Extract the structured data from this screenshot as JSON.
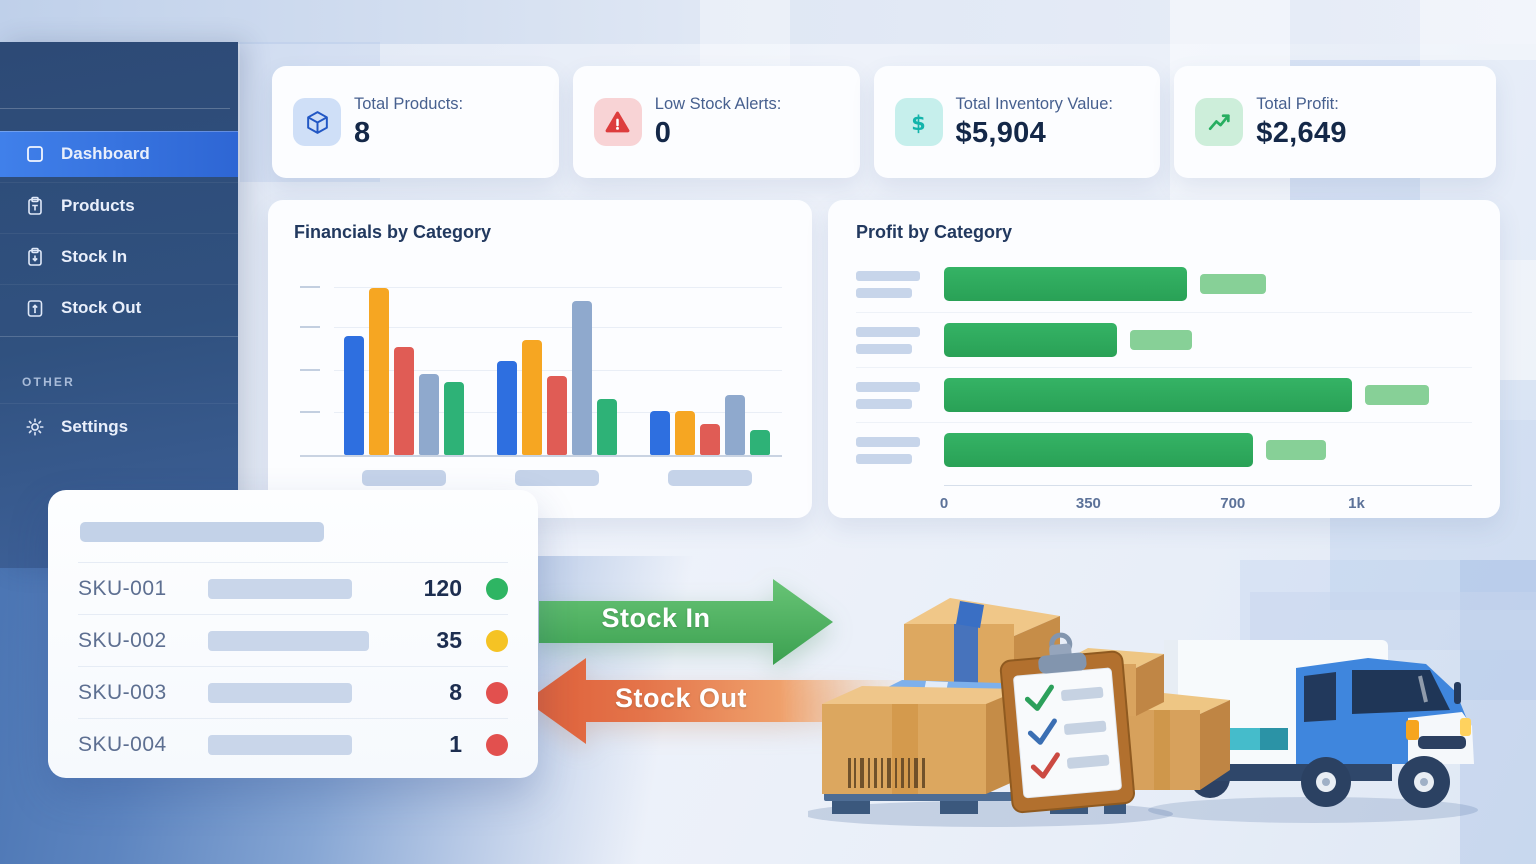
{
  "sidebar": {
    "items": [
      {
        "label": "Dashboard",
        "icon": "dashboard-icon",
        "active": true
      },
      {
        "label": "Products",
        "icon": "products-icon",
        "active": false
      },
      {
        "label": "Stock In",
        "icon": "stock-in-icon",
        "active": false
      },
      {
        "label": "Stock Out",
        "icon": "stock-out-icon",
        "active": false
      }
    ],
    "section_label": "OTHER",
    "settings_label": "Settings"
  },
  "kpi_cards": [
    {
      "label": "Total Products:",
      "value": "8",
      "icon": "cube-icon",
      "icon_color": "#2257c4",
      "icon_bg": "#cfdff7"
    },
    {
      "label": "Low Stock Alerts:",
      "value": "0",
      "icon": "alert-icon",
      "icon_color": "#dd3d3d",
      "icon_bg": "#f8d3d5"
    },
    {
      "label": "Total Inventory Value:",
      "value": "$5,904",
      "icon": "dollar-icon",
      "icon_color": "#13b4ab",
      "icon_bg": "#c6efec"
    },
    {
      "label": "Total Profit:",
      "value": "$2,649",
      "icon": "trend-up-icon",
      "icon_color": "#27ae60",
      "icon_bg": "#cdeeda"
    }
  ],
  "chart_data": [
    {
      "type": "bar",
      "title": "Financials by Category",
      "categories": [
        "",
        "",
        ""
      ],
      "x_labels_are_placeholders": true,
      "ylim": [
        0,
        100
      ],
      "grid": true,
      "legend": "none",
      "series": [
        {
          "name": "series-blue",
          "color": "#2e6fe0",
          "values": [
            62,
            49,
            23
          ]
        },
        {
          "name": "series-amber",
          "color": "#f6a622",
          "values": [
            87,
            60,
            23
          ]
        },
        {
          "name": "series-red",
          "color": "#e05c55",
          "values": [
            56,
            41,
            16
          ]
        },
        {
          "name": "series-slate",
          "color": "#8fa9cd",
          "values": [
            42,
            80,
            31
          ]
        },
        {
          "name": "series-green",
          "color": "#2eb277",
          "values": [
            38,
            29,
            13
          ]
        }
      ]
    },
    {
      "type": "bar-horizontal",
      "title": "Profit by Category",
      "y_labels_are_placeholders": true,
      "xlim": [
        0,
        1280
      ],
      "x_ticks": [
        {
          "label": "0",
          "value": 0
        },
        {
          "label": "350",
          "value": 350
        },
        {
          "label": "700",
          "value": 700
        },
        {
          "label": "1k",
          "value": 1000
        }
      ],
      "main_color": "#2fae5e",
      "secondary_color": "#87d097",
      "secondary_gap": 30,
      "rows": [
        {
          "main": 590,
          "secondary": 160
        },
        {
          "main": 420,
          "secondary": 150
        },
        {
          "main": 990,
          "secondary": 155
        },
        {
          "main": 750,
          "secondary": 145
        }
      ]
    }
  ],
  "sku_table": {
    "rows": [
      {
        "sku": "SKU-001",
        "qty": "120",
        "status_color": "#2eb563",
        "status": "in-stock",
        "placeholder_width": 144
      },
      {
        "sku": "SKU-002",
        "qty": "35",
        "status_color": "#f5c324",
        "status": "low",
        "placeholder_width": 161
      },
      {
        "sku": "SKU-003",
        "qty": "8",
        "status_color": "#e2504e",
        "status": "critical",
        "placeholder_width": 144
      },
      {
        "sku": "SKU-004",
        "qty": "1",
        "status_color": "#e2504e",
        "status": "critical",
        "placeholder_width": 144
      }
    ]
  },
  "flow_arrows": {
    "stock_in_label": "Stock In",
    "stock_out_label": "Stock Out",
    "stock_in_color": "#3ea254",
    "stock_out_color": "#e2603a"
  }
}
